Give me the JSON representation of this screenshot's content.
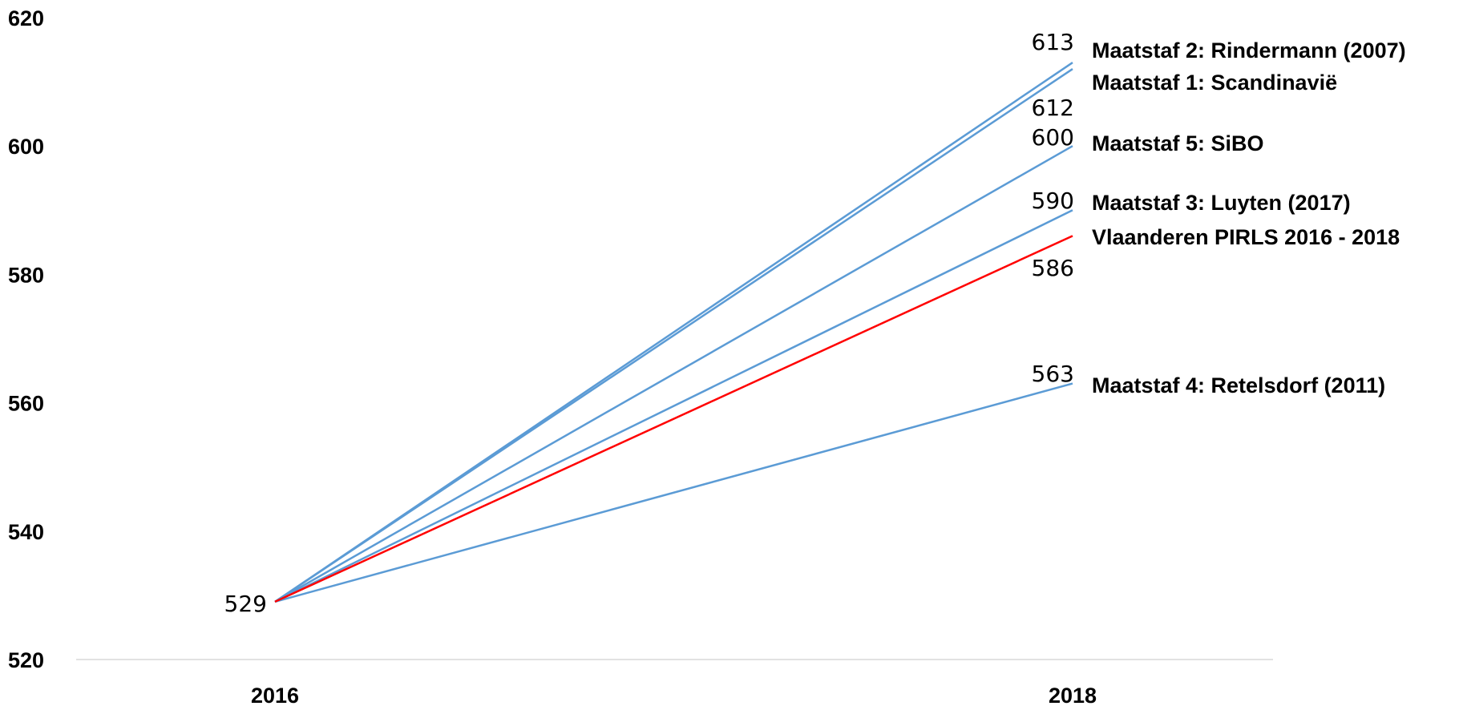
{
  "chart_data": {
    "type": "line",
    "x": [
      "2016",
      "2018"
    ],
    "ylim": [
      520,
      620
    ],
    "yticks": [
      "520",
      "540",
      "560",
      "580",
      "600",
      "620"
    ],
    "grid": false,
    "series": [
      {
        "name": "Maatstaf 2: Rindermann (2007)",
        "color": "#5b9bd5",
        "values": [
          529,
          613
        ],
        "end_label": "613"
      },
      {
        "name": "Maatstaf 1: Scandinavië",
        "color": "#5b9bd5",
        "values": [
          529,
          612
        ],
        "end_label": "612"
      },
      {
        "name": "Maatstaf 5: SiBO",
        "color": "#5b9bd5",
        "values": [
          529,
          600
        ],
        "end_label": "600"
      },
      {
        "name": "Maatstaf 3: Luyten (2017)",
        "color": "#5b9bd5",
        "values": [
          529,
          590
        ],
        "end_label": "590"
      },
      {
        "name": "Vlaanderen PIRLS 2016 - 2018",
        "color": "#ff0000",
        "values": [
          529,
          586
        ],
        "end_label": "586"
      },
      {
        "name": "Maatstaf 4: Retelsdorf (2011)",
        "color": "#5b9bd5",
        "values": [
          529,
          563
        ],
        "end_label": "563"
      }
    ],
    "start_label": "529"
  }
}
